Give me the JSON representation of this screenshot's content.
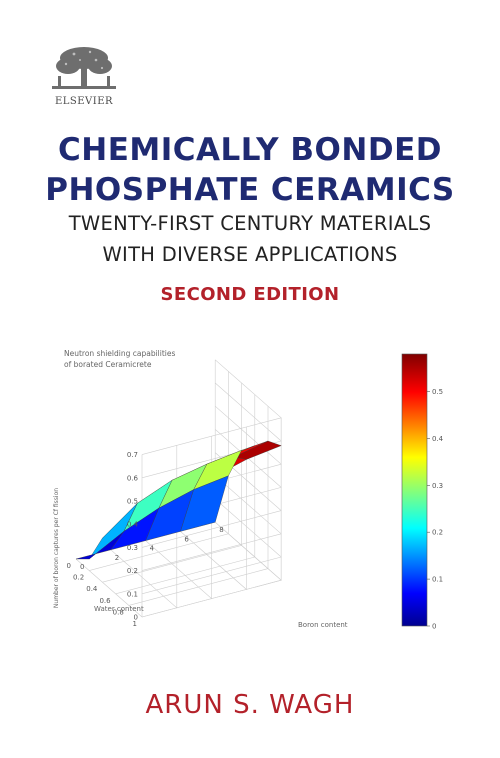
{
  "publisher": {
    "name": "ELSEVIER",
    "logo_icon": "elsevier-tree-logo-icon"
  },
  "book": {
    "title_line1": "CHEMICALLY BONDED",
    "title_line2": "PHOSPHATE CERAMICS",
    "subtitle_line1": "TWENTY-FIRST CENTURY MATERIALS",
    "subtitle_line2": "WITH DIVERSE APPLICATIONS",
    "edition": "SECOND EDITION",
    "author": "ARUN S. WAGH"
  },
  "colors": {
    "title": "#1f2a72",
    "accent": "#b3212a",
    "text": "#222222"
  },
  "chart_data": {
    "type": "surface",
    "title_line1": "Neutron shielding capabilities",
    "title_line2": "of borated Ceramicrete",
    "zlabel": "Number of boron captures per Cf fission",
    "xlabel": "Water content",
    "ylabel": "Boron content",
    "z_ticks": [
      "0",
      "0.1",
      "0.2",
      "0.3",
      "0.4",
      "0.5",
      "0.6",
      "0.7"
    ],
    "water_ticks": [
      "0",
      "0.2",
      "0.4",
      "0.6",
      "0.8",
      "1"
    ],
    "boron_ticks": [
      "0",
      "2",
      "4",
      "6",
      "8"
    ],
    "colorbar_ticks": [
      "0",
      "0.1",
      "0.2",
      "0.3",
      "0.4",
      "0.5"
    ],
    "zlim": [
      0,
      0.7
    ],
    "water_range": [
      0,
      1
    ],
    "boron_range": [
      0,
      8
    ],
    "colorbar_range": [
      0,
      0.58
    ],
    "water_values": [
      0,
      0.2,
      0.4,
      0.6,
      0.8,
      1.0
    ],
    "boron_values": [
      0,
      2,
      4,
      6,
      8
    ],
    "z_values": [
      [
        0.0,
        0.0,
        0.0,
        0.0,
        0.0
      ],
      [
        0.05,
        0.13,
        0.19,
        0.23,
        0.25
      ],
      [
        0.19,
        0.3,
        0.36,
        0.39,
        0.41
      ],
      [
        0.28,
        0.38,
        0.43,
        0.46,
        0.48
      ],
      [
        0.33,
        0.43,
        0.48,
        0.52,
        0.55
      ],
      [
        0.37,
        0.47,
        0.52,
        0.56,
        0.58
      ]
    ]
  }
}
